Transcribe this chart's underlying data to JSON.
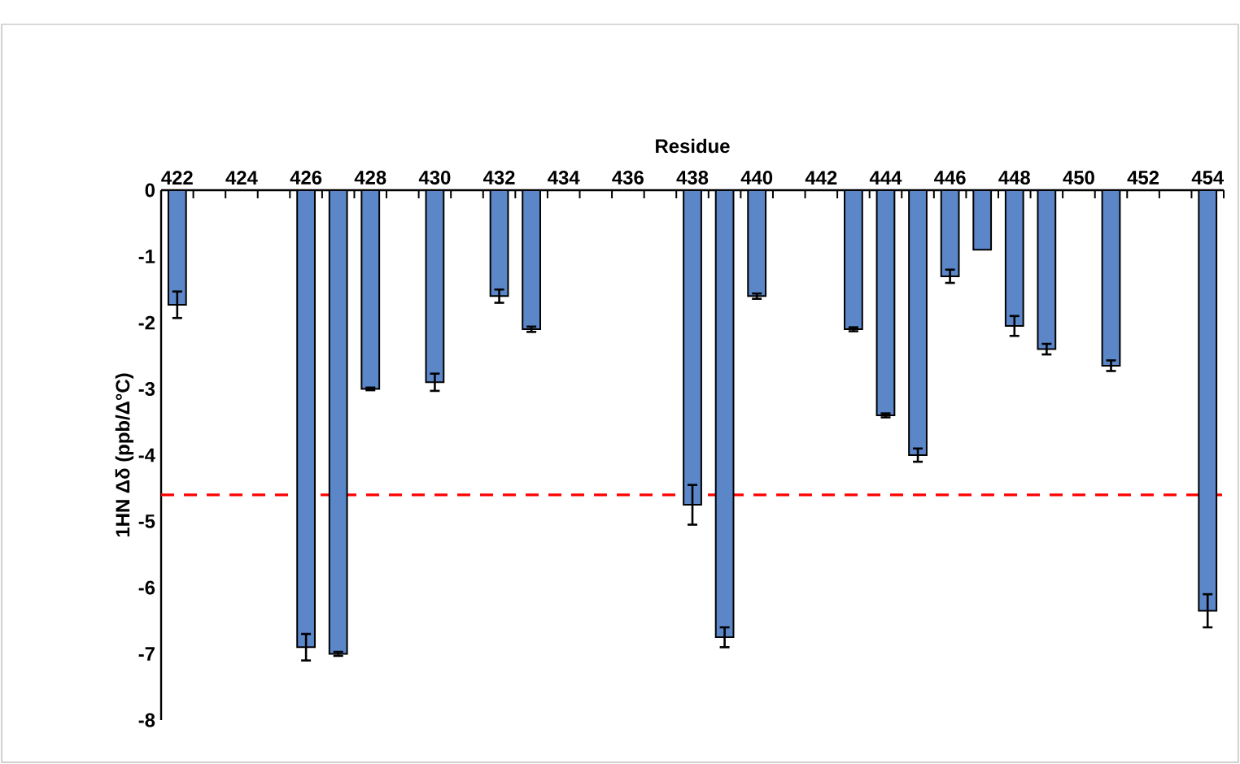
{
  "chart_data": {
    "type": "bar",
    "xlabel": "Residue",
    "ylabel": "1HN Δδ (ppb/Δ°C)",
    "x": [
      422,
      426,
      427,
      428,
      430,
      432,
      433,
      438,
      439,
      440,
      443,
      444,
      445,
      446,
      447,
      448,
      449,
      451,
      454
    ],
    "values": [
      -1.73,
      -6.9,
      -7.0,
      -3.0,
      -2.9,
      -1.6,
      -2.1,
      -4.75,
      -6.75,
      -1.6,
      -2.1,
      -3.4,
      -4.0,
      -1.3,
      -0.9,
      -2.05,
      -2.4,
      -2.65,
      -6.35
    ],
    "errors": [
      0.2,
      0.2,
      0.03,
      0.02,
      0.13,
      0.1,
      0.04,
      0.3,
      0.15,
      0.04,
      0.03,
      0.03,
      0.1,
      0.1,
      null,
      0.15,
      0.08,
      0.08,
      0.25
    ],
    "color": "#5b87c9",
    "xlim": [
      421.5,
      454.5
    ],
    "xticks": [
      422,
      424,
      426,
      428,
      430,
      432,
      434,
      436,
      438,
      440,
      442,
      444,
      446,
      448,
      450,
      452,
      454
    ],
    "ylim": [
      -8,
      0
    ],
    "yticks": [
      -8,
      -7,
      -6,
      -5,
      -4,
      -3,
      -2,
      -1,
      0
    ],
    "ref_lines": [
      {
        "axis": "y",
        "value": -4.6,
        "color": "#ff0000",
        "line_style": "dashed"
      }
    ]
  }
}
